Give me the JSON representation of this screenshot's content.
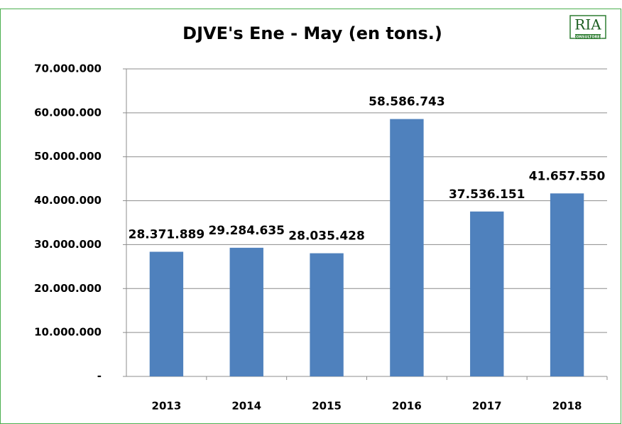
{
  "logo": {
    "name": "RIA",
    "tagline": "CONSULTORES"
  },
  "chart_data": {
    "type": "bar",
    "title": "DJVE's Ene - May (en tons.)",
    "categories": [
      "2013",
      "2014",
      "2015",
      "2016",
      "2017",
      "2018"
    ],
    "values": [
      28371889,
      29284635,
      28035428,
      58586743,
      37536151,
      41657550
    ],
    "value_labels": [
      "28.371.889",
      "29.284.635",
      "28.035.428",
      "58.586.743",
      "37.536.151",
      "41.657.550"
    ],
    "color": "#4f81bd",
    "ylim": [
      0,
      70000000
    ],
    "yticks": [
      {
        "value": 0,
        "label": "-"
      },
      {
        "value": 10000000,
        "label": "10.000.000"
      },
      {
        "value": 20000000,
        "label": "20.000.000"
      },
      {
        "value": 30000000,
        "label": "30.000.000"
      },
      {
        "value": 40000000,
        "label": "40.000.000"
      },
      {
        "value": 50000000,
        "label": "50.000.000"
      },
      {
        "value": 60000000,
        "label": "60.000.000"
      },
      {
        "value": 70000000,
        "label": "70.000.000"
      }
    ],
    "grid": true
  }
}
